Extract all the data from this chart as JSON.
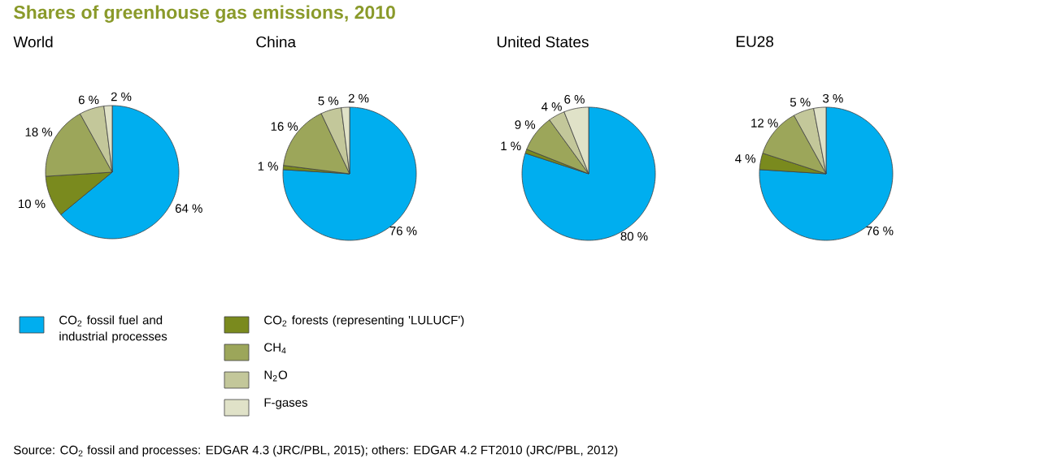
{
  "chart_data": [
    {
      "type": "pie",
      "title": "Shares of greenhouse gas emissions, 2010",
      "subtitle": "World",
      "categories": [
        "CO$_{2}$ fossil fuel and industrial processes",
        "CO$_{2}$ forests (representing 'LULUCF')",
        "CH$_{4}$",
        "N$_{2}$O",
        "F-gases"
      ],
      "values": [
        64,
        10,
        18,
        6,
        2
      ],
      "value_labels": [
        "64 %",
        "10 %",
        "18 %",
        "6 %",
        "2 %"
      ],
      "colors": [
        "#00aeef",
        "#7a8a1e",
        "#9ca65a",
        "#c3c79a",
        "#e0e2c8"
      ],
      "legend": "bottom",
      "annotations": [
        "Source: CO$_{2}$ fossil and processes: EDGAR 4.3 (JRC/PBL, 2015); others: EDGAR 4.2 FT2010 (JRC/PBL, 2012)"
      ]
    },
    {
      "type": "pie",
      "subtitle": "China",
      "categories": [
        null,
        null,
        null,
        null,
        null
      ],
      "values": [
        76,
        1,
        16,
        5,
        2
      ],
      "value_labels": [
        "76 %",
        "1 %",
        "16 %",
        "5 %",
        "2 %"
      ],
      "colors": [
        "#00aeef",
        "#7a8a1e",
        "#9ca65a",
        "#c3c79a",
        "#e0e2c8"
      ]
    },
    {
      "type": "pie",
      "subtitle": "United States",
      "categories": [
        null,
        null,
        null,
        null,
        null
      ],
      "values": [
        80,
        1,
        9,
        4,
        6
      ],
      "value_labels": [
        "80 %",
        "1 %",
        "9 %",
        "4 %",
        "6 %"
      ],
      "colors": [
        "#00aeef",
        "#7a8a1e",
        "#9ca65a",
        "#c3c79a",
        "#e0e2c8"
      ]
    },
    {
      "type": "pie",
      "subtitle": "EU28",
      "categories": [
        null,
        null,
        null,
        null,
        null
      ],
      "values": [
        76,
        4,
        12,
        5,
        3
      ],
      "value_labels": [
        "76 %",
        "4 %",
        "12 %",
        "5 %",
        "3 %"
      ],
      "colors": [
        "#00aeef",
        "#7a8a1e",
        "#9ca65a",
        "#c3c79a",
        "#e0e2c8"
      ]
    }
  ]
}
